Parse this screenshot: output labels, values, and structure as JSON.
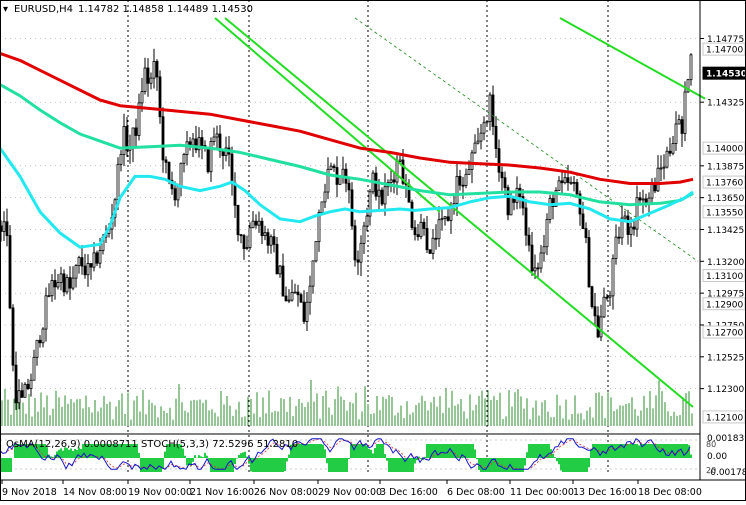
{
  "header": {
    "symbol_label": "EURUSD,H4",
    "ohlc_label": "1.14782 1.14858 1.14489 1.14530"
  },
  "price_axis": {
    "ticks": [
      "1.14775",
      "1.14325",
      "1.13875",
      "1.13650",
      "1.13425",
      "1.13200",
      "1.12975",
      "1.12750",
      "1.12525",
      "1.12300"
    ],
    "boxed_levels": [
      "1.14700",
      "1.14530",
      "1.14000",
      "1.13760",
      "1.13550",
      "1.13100",
      "1.12900",
      "1.12700",
      "1.12100"
    ],
    "highlight_level": "1.14530"
  },
  "osma_panel": {
    "label": "OsMA(12,26,9) 0.0008711 STOCH(5,3,3) 72.5296 51.2810",
    "axis_ticks": [
      "0.001839",
      "0.00",
      "-0.001783"
    ],
    "stoch_levels_visible": [
      "80",
      "20"
    ]
  },
  "x_axis": {
    "labels": [
      "9 Nov 2018",
      "14 Nov 08:00",
      "19 Nov 00:00",
      "21 Nov 16:00",
      "26 Nov 08:00",
      "29 Nov 00:00",
      "3 Dec 16:00",
      "6 Dec 08:00",
      "11 Dec 00:00",
      "13 Dec 16:00",
      "18 Dec 08:00"
    ]
  },
  "colors": {
    "background": "#ffffff",
    "candle": "#000000",
    "volume": "#2e8b2e",
    "grid": "#000000",
    "ma_red": "#e00000",
    "ma_teal": "#22e0a0",
    "ma_cyan": "#22e8f0",
    "channel": "#22dd22",
    "osma_hist": "#22cc44",
    "stoch_main": "#1515cc",
    "stoch_signal": "#e03030"
  },
  "chart_data": {
    "type": "candlestick",
    "symbol": "EURUSD",
    "timeframe": "H4",
    "ylim": [
      1.1205,
      1.1492
    ],
    "last_price": 1.1453,
    "last_ohlc": {
      "open": 1.14782,
      "high": 1.14858,
      "low": 1.14489,
      "close": 1.1453
    },
    "key_levels": [
      1.147,
      1.1453,
      1.14,
      1.1376,
      1.1355,
      1.131,
      1.129,
      1.127,
      1.121
    ],
    "close_path": [
      [
        0,
        1.1345
      ],
      [
        6,
        1.135
      ],
      [
        10,
        1.129
      ],
      [
        14,
        1.123
      ],
      [
        22,
        1.122
      ],
      [
        32,
        1.124
      ],
      [
        40,
        1.127
      ],
      [
        50,
        1.13
      ],
      [
        60,
        1.131
      ],
      [
        70,
        1.13
      ],
      [
        80,
        1.132
      ],
      [
        90,
        1.131
      ],
      [
        100,
        1.133
      ],
      [
        108,
        1.134
      ],
      [
        116,
        1.137
      ],
      [
        122,
        1.141
      ],
      [
        130,
        1.14
      ],
      [
        138,
        1.142
      ],
      [
        144,
        1.1455
      ],
      [
        150,
        1.1445
      ],
      [
        156,
        1.146
      ],
      [
        160,
        1.142
      ],
      [
        164,
        1.139
      ],
      [
        170,
        1.137
      ],
      [
        176,
        1.137
      ],
      [
        184,
        1.139
      ],
      [
        192,
        1.141
      ],
      [
        200,
        1.14
      ],
      [
        208,
        1.139
      ],
      [
        214,
        1.141
      ],
      [
        222,
        1.14
      ],
      [
        228,
        1.1395
      ],
      [
        234,
        1.136
      ],
      [
        240,
        1.134
      ],
      [
        246,
        1.133
      ],
      [
        252,
        1.135
      ],
      [
        258,
        1.135
      ],
      [
        264,
        1.134
      ],
      [
        272,
        1.133
      ],
      [
        280,
        1.131
      ],
      [
        288,
        1.129
      ],
      [
        296,
        1.13
      ],
      [
        304,
        1.128
      ],
      [
        310,
        1.13
      ],
      [
        316,
        1.134
      ],
      [
        322,
        1.137
      ],
      [
        330,
        1.1385
      ],
      [
        338,
        1.138
      ],
      [
        344,
        1.139
      ],
      [
        350,
        1.136
      ],
      [
        356,
        1.132
      ],
      [
        362,
        1.134
      ],
      [
        368,
        1.136
      ],
      [
        374,
        1.138
      ],
      [
        380,
        1.136
      ],
      [
        386,
        1.137
      ],
      [
        392,
        1.138
      ],
      [
        400,
        1.1395
      ],
      [
        406,
        1.137
      ],
      [
        412,
        1.135
      ],
      [
        418,
        1.134
      ],
      [
        424,
        1.135
      ],
      [
        430,
        1.132
      ],
      [
        436,
        1.134
      ],
      [
        444,
        1.1345
      ],
      [
        452,
        1.136
      ],
      [
        458,
        1.138
      ],
      [
        464,
        1.137
      ],
      [
        470,
        1.139
      ],
      [
        478,
        1.14
      ],
      [
        484,
        1.142
      ],
      [
        490,
        1.143
      ],
      [
        496,
        1.14
      ],
      [
        502,
        1.138
      ],
      [
        508,
        1.136
      ],
      [
        514,
        1.136
      ],
      [
        520,
        1.137
      ],
      [
        526,
        1.134
      ],
      [
        532,
        1.132
      ],
      [
        538,
        1.132
      ],
      [
        544,
        1.133
      ],
      [
        550,
        1.136
      ],
      [
        556,
        1.137
      ],
      [
        562,
        1.137
      ],
      [
        568,
        1.1375
      ],
      [
        574,
        1.137
      ],
      [
        580,
        1.136
      ],
      [
        586,
        1.133
      ],
      [
        592,
        1.129
      ],
      [
        598,
        1.127
      ],
      [
        604,
        1.129
      ],
      [
        610,
        1.13
      ],
      [
        616,
        1.133
      ],
      [
        622,
        1.135
      ],
      [
        628,
        1.1345
      ],
      [
        634,
        1.135
      ],
      [
        640,
        1.137
      ],
      [
        646,
        1.136
      ],
      [
        652,
        1.137
      ],
      [
        658,
        1.138
      ],
      [
        664,
        1.139
      ],
      [
        670,
        1.14
      ],
      [
        676,
        1.142
      ],
      [
        682,
        1.141
      ],
      [
        686,
        1.144
      ],
      [
        690,
        1.147
      ],
      [
        693,
        1.1478
      ]
    ],
    "ma_red": [
      [
        0,
        1.1467
      ],
      [
        20,
        1.1462
      ],
      [
        40,
        1.1455
      ],
      [
        60,
        1.1448
      ],
      [
        80,
        1.1441
      ],
      [
        100,
        1.1434
      ],
      [
        120,
        1.143
      ],
      [
        150,
        1.1428
      ],
      [
        180,
        1.1426
      ],
      [
        210,
        1.1424
      ],
      [
        240,
        1.142
      ],
      [
        270,
        1.1416
      ],
      [
        300,
        1.1412
      ],
      [
        330,
        1.1406
      ],
      [
        360,
        1.14
      ],
      [
        390,
        1.1397
      ],
      [
        420,
        1.1393
      ],
      [
        450,
        1.139
      ],
      [
        480,
        1.1389
      ],
      [
        510,
        1.1388
      ],
      [
        540,
        1.1386
      ],
      [
        570,
        1.1383
      ],
      [
        600,
        1.1378
      ],
      [
        630,
        1.1375
      ],
      [
        660,
        1.1375
      ],
      [
        680,
        1.1376
      ],
      [
        693,
        1.1378
      ]
    ],
    "ma_teal": [
      [
        0,
        1.1445
      ],
      [
        20,
        1.1437
      ],
      [
        40,
        1.1427
      ],
      [
        60,
        1.1418
      ],
      [
        80,
        1.141
      ],
      [
        100,
        1.1405
      ],
      [
        120,
        1.14
      ],
      [
        150,
        1.1401
      ],
      [
        180,
        1.1402
      ],
      [
        210,
        1.14
      ],
      [
        240,
        1.1397
      ],
      [
        270,
        1.1392
      ],
      [
        300,
        1.1387
      ],
      [
        330,
        1.1381
      ],
      [
        360,
        1.1378
      ],
      [
        390,
        1.1374
      ],
      [
        420,
        1.137
      ],
      [
        450,
        1.1367
      ],
      [
        480,
        1.1368
      ],
      [
        510,
        1.1369
      ],
      [
        540,
        1.1369
      ],
      [
        570,
        1.1367
      ],
      [
        600,
        1.1362
      ],
      [
        630,
        1.136
      ],
      [
        660,
        1.1361
      ],
      [
        680,
        1.1363
      ],
      [
        693,
        1.1368
      ]
    ],
    "ma_cyan": [
      [
        0,
        1.14
      ],
      [
        20,
        1.138
      ],
      [
        40,
        1.1355
      ],
      [
        60,
        1.134
      ],
      [
        80,
        1.133
      ],
      [
        100,
        1.1332
      ],
      [
        110,
        1.1345
      ],
      [
        120,
        1.1365
      ],
      [
        135,
        1.138
      ],
      [
        150,
        1.138
      ],
      [
        165,
        1.1378
      ],
      [
        180,
        1.1373
      ],
      [
        200,
        1.137
      ],
      [
        220,
        1.1373
      ],
      [
        232,
        1.1376
      ],
      [
        245,
        1.137
      ],
      [
        260,
        1.136
      ],
      [
        280,
        1.135
      ],
      [
        300,
        1.1348
      ],
      [
        315,
        1.1352
      ],
      [
        330,
        1.1355
      ],
      [
        345,
        1.1357
      ],
      [
        360,
        1.1355
      ],
      [
        380,
        1.1356
      ],
      [
        400,
        1.1357
      ],
      [
        415,
        1.1356
      ],
      [
        430,
        1.1357
      ],
      [
        450,
        1.1358
      ],
      [
        470,
        1.1362
      ],
      [
        490,
        1.1365
      ],
      [
        510,
        1.1366
      ],
      [
        530,
        1.1362
      ],
      [
        550,
        1.136
      ],
      [
        570,
        1.1361
      ],
      [
        590,
        1.1357
      ],
      [
        610,
        1.135
      ],
      [
        630,
        1.1348
      ],
      [
        650,
        1.1354
      ],
      [
        670,
        1.136
      ],
      [
        685,
        1.1365
      ],
      [
        693,
        1.1369
      ]
    ],
    "channel_lines": [
      {
        "from": [
          215,
          1.1492
        ],
        "to": [
          440,
          1.1355
        ]
      },
      {
        "from": [
          225,
          1.1492
        ],
        "to": [
          693,
          1.1217
        ]
      },
      {
        "from": [
          560,
          1.1492
        ],
        "to": [
          705,
          1.1435
        ]
      },
      {
        "from": [
          355,
          1.1492
        ],
        "to": [
          698,
          1.132
        ]
      }
    ],
    "x_labels": [
      "9 Nov 2018",
      "14 Nov 08:00",
      "19 Nov 00:00",
      "21 Nov 16:00",
      "26 Nov 08:00",
      "29 Nov 00:00",
      "3 Dec 16:00",
      "6 Dec 08:00",
      "11 Dec 00:00",
      "13 Dec 16:00",
      "18 Dec 08:00"
    ],
    "indicators": {
      "OsMA": {
        "params": "12,26,9",
        "value": 0.0008711,
        "range": [
          -0.001783,
          0.001839
        ]
      },
      "Stochastic": {
        "params": "5,3,3",
        "main": 72.5296,
        "signal": 51.281,
        "levels": [
          20,
          80
        ]
      }
    }
  }
}
